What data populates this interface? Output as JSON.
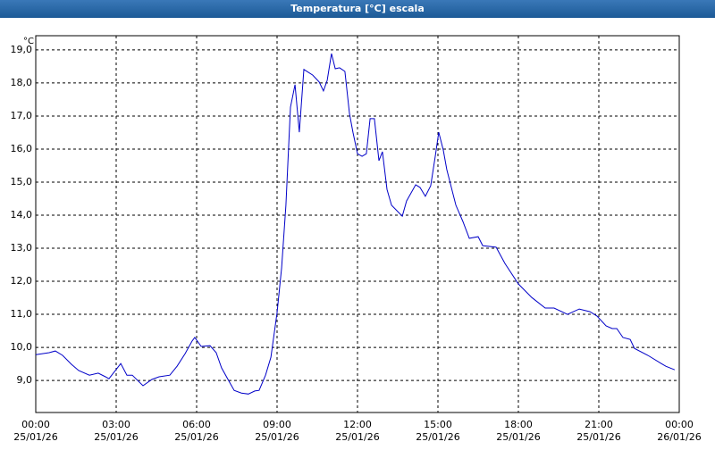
{
  "chart_data": {
    "type": "line",
    "title": "Temperatura [°C] escala",
    "y_label": "°C",
    "x": [
      0,
      0.5,
      0.73,
      1.0,
      1.33,
      1.6,
      2.0,
      2.33,
      2.6,
      2.73,
      3.17,
      3.4,
      3.6,
      4.0,
      4.33,
      4.6,
      5.0,
      5.27,
      5.57,
      5.83,
      5.93,
      6.17,
      6.5,
      6.73,
      6.93,
      7.17,
      7.4,
      7.67,
      7.93,
      8.17,
      8.33,
      8.57,
      8.77,
      9.0,
      9.17,
      9.33,
      9.5,
      9.67,
      9.83,
      10.0,
      10.33,
      10.57,
      10.73,
      10.87,
      11.03,
      11.17,
      11.33,
      11.53,
      11.7,
      11.83,
      12.0,
      12.17,
      12.33,
      12.47,
      12.63,
      12.8,
      12.93,
      13.1,
      13.27,
      13.67,
      13.83,
      14.17,
      14.33,
      14.53,
      14.73,
      14.9,
      15.03,
      15.2,
      15.33,
      15.67,
      15.93,
      16.17,
      16.5,
      16.67,
      17.17,
      17.5,
      18.0,
      18.5,
      19.0,
      19.33,
      19.83,
      20.27,
      20.67,
      20.93,
      21.27,
      21.5,
      21.67,
      21.9,
      22.17,
      22.33,
      22.83,
      23.33,
      23.5,
      23.83
    ],
    "series": [
      {
        "name": "Temperatura",
        "color": "#0000c8",
        "values": [
          9.78,
          9.84,
          9.89,
          9.76,
          9.49,
          9.3,
          9.16,
          9.22,
          9.11,
          9.05,
          9.51,
          9.16,
          9.16,
          8.84,
          9.03,
          9.11,
          9.16,
          9.43,
          9.81,
          10.19,
          10.3,
          10.03,
          10.05,
          9.84,
          9.38,
          9.03,
          8.7,
          8.62,
          8.59,
          8.68,
          8.7,
          9.16,
          9.7,
          11.05,
          12.41,
          14.3,
          17.27,
          17.95,
          16.51,
          18.41,
          18.24,
          18.03,
          17.76,
          18.08,
          18.89,
          18.43,
          18.46,
          18.35,
          17.08,
          16.51,
          15.86,
          15.78,
          15.86,
          16.92,
          16.92,
          15.65,
          15.92,
          14.78,
          14.3,
          13.97,
          14.43,
          14.92,
          14.84,
          14.57,
          14.89,
          15.78,
          16.51,
          15.97,
          15.38,
          14.3,
          13.81,
          13.3,
          13.35,
          13.08,
          13.03,
          12.54,
          11.92,
          11.51,
          11.19,
          11.19,
          11.0,
          11.16,
          11.08,
          10.95,
          10.65,
          10.57,
          10.57,
          10.3,
          10.24,
          9.97,
          9.76,
          9.51,
          9.43,
          9.32
        ]
      }
    ],
    "xlim": [
      0,
      24
    ],
    "ylim": [
      8.03,
      19.43
    ],
    "xticks": [
      {
        "value": 0,
        "label": "00:00",
        "sublabel": "25/01/26"
      },
      {
        "value": 3,
        "label": "03:00",
        "sublabel": "25/01/26"
      },
      {
        "value": 6,
        "label": "06:00",
        "sublabel": "25/01/26"
      },
      {
        "value": 9,
        "label": "09:00",
        "sublabel": "25/01/26"
      },
      {
        "value": 12,
        "label": "12:00",
        "sublabel": "25/01/26"
      },
      {
        "value": 15,
        "label": "15:00",
        "sublabel": "25/01/26"
      },
      {
        "value": 18,
        "label": "18:00",
        "sublabel": "25/01/26"
      },
      {
        "value": 21,
        "label": "21:00",
        "sublabel": "25/01/26"
      },
      {
        "value": 24,
        "label": "00:00",
        "sublabel": "26/01/26"
      }
    ],
    "yticks": [
      {
        "value": 9,
        "label": "9,0"
      },
      {
        "value": 10,
        "label": "10,0"
      },
      {
        "value": 11,
        "label": "11,0"
      },
      {
        "value": 12,
        "label": "12,0"
      },
      {
        "value": 13,
        "label": "13,0"
      },
      {
        "value": 14,
        "label": "14,0"
      },
      {
        "value": 15,
        "label": "15,0"
      },
      {
        "value": 16,
        "label": "16,0"
      },
      {
        "value": 17,
        "label": "17,0"
      },
      {
        "value": 18,
        "label": "18,0"
      },
      {
        "value": 19,
        "label": "19,0"
      }
    ],
    "grid": true
  }
}
